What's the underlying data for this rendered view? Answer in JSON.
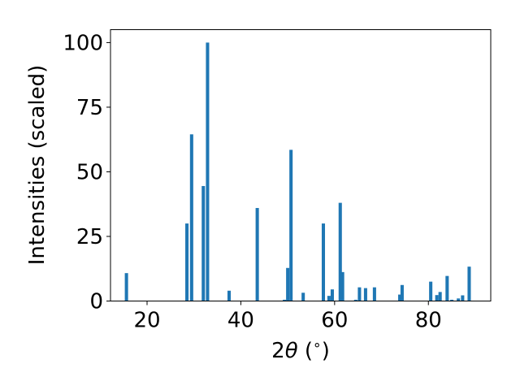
{
  "chart_data": {
    "type": "bar",
    "xlabel_main": "2",
    "xlabel_theta": "θ",
    "xlabel_unit": " (",
    "xlabel_degree": "∘",
    "xlabel_close": ")",
    "ylabel": "Intensities (scaled)",
    "xlim": [
      12.2,
      93.3
    ],
    "ylim": [
      0,
      105
    ],
    "xticks": [
      20,
      40,
      60,
      80
    ],
    "yticks": [
      0,
      25,
      50,
      75,
      100
    ],
    "bar_width_units": 0.7,
    "bar_color": "#1f77b4",
    "grid": false,
    "legend": "none",
    "x": [
      15.6,
      28.5,
      29.5,
      32.0,
      32.9,
      37.5,
      43.5,
      49.3,
      50.0,
      50.7,
      53.3,
      57.6,
      58.8,
      59.5,
      61.2,
      61.7,
      64.5,
      65.3,
      66.6,
      68.5,
      73.9,
      74.4,
      80.5,
      81.8,
      82.5,
      84.0,
      85.0,
      86.4,
      87.3,
      88.7
    ],
    "values": [
      10.8,
      30.0,
      64.5,
      44.5,
      100.0,
      4.0,
      36.0,
      0.5,
      12.8,
      58.5,
      3.2,
      30.0,
      2.0,
      4.5,
      38.0,
      11.2,
      0.5,
      5.3,
      5.0,
      5.3,
      2.5,
      6.2,
      7.5,
      2.3,
      3.5,
      9.7,
      0.5,
      1.0,
      2.2,
      13.3
    ]
  }
}
